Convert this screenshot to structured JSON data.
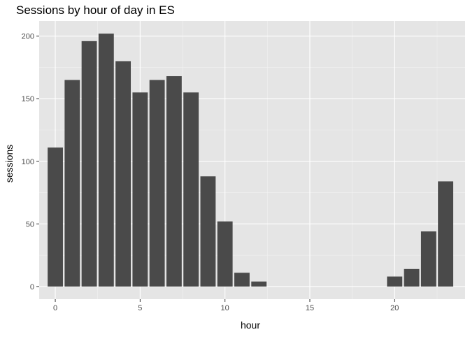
{
  "chart_data": {
    "type": "bar",
    "title": "Sessions by hour of day in ES",
    "xlabel": "hour",
    "ylabel": "sessions",
    "x": [
      0,
      1,
      2,
      3,
      4,
      5,
      6,
      7,
      8,
      9,
      10,
      11,
      12,
      20,
      21,
      22,
      23
    ],
    "values": [
      111,
      165,
      196,
      202,
      180,
      155,
      165,
      168,
      155,
      88,
      52,
      11,
      4,
      8,
      14,
      44,
      84
    ],
    "xlim": [
      -0.95,
      24.15
    ],
    "ylim": [
      -10.1,
      212.1
    ],
    "x_ticks": [
      0,
      5,
      10,
      15,
      20
    ],
    "x_tick_labels": [
      "0",
      "5",
      "10",
      "15",
      "20"
    ],
    "y_ticks": [
      0,
      50,
      100,
      150,
      200
    ],
    "y_tick_labels": [
      "0",
      "50",
      "100",
      "150",
      "200"
    ],
    "bar_color": "#4a4a4a",
    "panel_color": "#e5e5e5",
    "grid": true,
    "legend": "none"
  }
}
